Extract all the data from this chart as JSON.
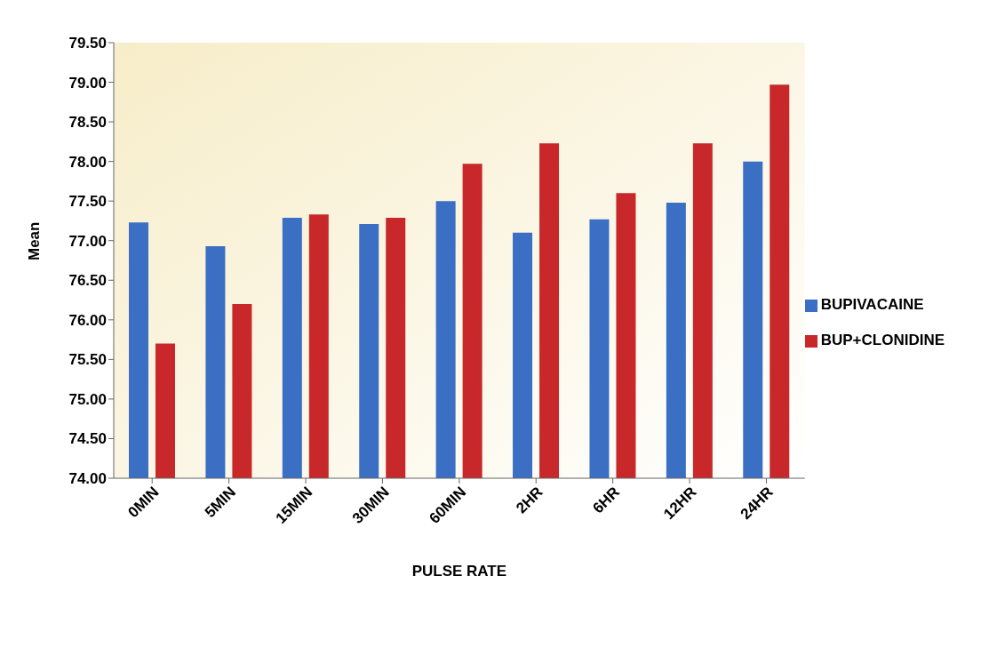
{
  "chart_data": {
    "type": "bar",
    "xlabel": "PULSE RATE",
    "ylabel": "Mean",
    "categories": [
      "0MIN",
      "5MIN",
      "15MIN",
      "30MIN",
      "60MIN",
      "2HR",
      "6HR",
      "12HR",
      "24HR"
    ],
    "series": [
      {
        "name": "BUPIVACAINE",
        "color": "#3a6fc4",
        "values": [
          77.23,
          76.93,
          77.29,
          77.21,
          77.5,
          77.1,
          77.27,
          77.48,
          78.0
        ]
      },
      {
        "name": "BUP+CLONIDINE",
        "color": "#c8282a",
        "values": [
          75.7,
          76.2,
          77.33,
          77.29,
          77.97,
          78.23,
          77.6,
          78.23,
          78.97
        ]
      }
    ],
    "ylim": [
      74,
      79.5
    ],
    "yticks": [
      {
        "value": 74,
        "label": "74.00"
      },
      {
        "value": 74.5,
        "label": "74.50"
      },
      {
        "value": 75,
        "label": "75.00"
      },
      {
        "value": 75.5,
        "label": "75.50"
      },
      {
        "value": 76,
        "label": "76.00"
      },
      {
        "value": 76.5,
        "label": "76.50"
      },
      {
        "value": 77,
        "label": "77.00"
      },
      {
        "value": 77.5,
        "label": "77.50"
      },
      {
        "value": 78,
        "label": "78.00"
      },
      {
        "value": 78.5,
        "label": "78.50"
      },
      {
        "value": 79,
        "label": "79.00"
      },
      {
        "value": 79.5,
        "label": "79.50"
      }
    ],
    "legend": "right"
  }
}
